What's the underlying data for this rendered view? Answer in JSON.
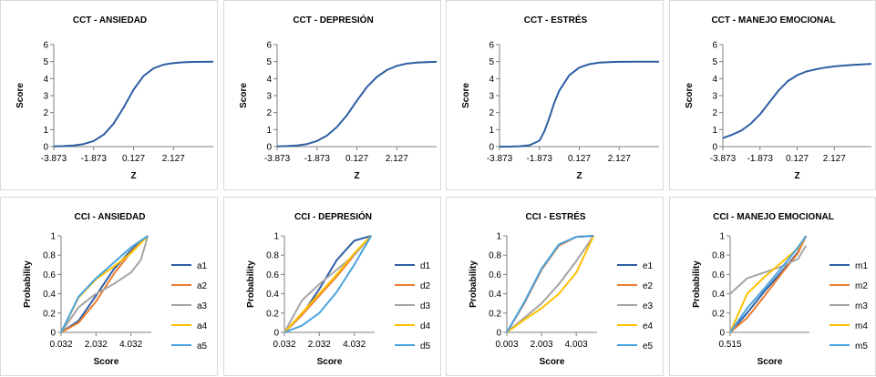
{
  "colors": {
    "series": [
      "#2e5fa3",
      "#ed7d31",
      "#a5a5a5",
      "#ffc000",
      "#4aa3df"
    ],
    "border": "#d9d9d9",
    "axis": "#7f7f7f"
  },
  "chart_data": [
    {
      "type": "line",
      "title": "CCT - ANSIEDAD",
      "xlabel": "Z",
      "ylabel": "Score",
      "xlim": [
        -3.873,
        4.127
      ],
      "ylim": [
        0,
        6
      ],
      "xticks": [
        "-3.873",
        "-1.873",
        "0.127",
        "2.127"
      ],
      "yticks": [
        "0",
        "1",
        "2",
        "3",
        "4",
        "5",
        "6"
      ],
      "series": [
        {
          "values": [
            [
              -3.873,
              0.01
            ],
            [
              -3.373,
              0.03
            ],
            [
              -2.873,
              0.07
            ],
            [
              -2.373,
              0.15
            ],
            [
              -1.873,
              0.33
            ],
            [
              -1.373,
              0.7
            ],
            [
              -0.873,
              1.35
            ],
            [
              -0.373,
              2.3
            ],
            [
              0.127,
              3.35
            ],
            [
              0.627,
              4.15
            ],
            [
              1.127,
              4.6
            ],
            [
              1.627,
              4.82
            ],
            [
              2.127,
              4.91
            ],
            [
              2.627,
              4.96
            ],
            [
              3.127,
              4.98
            ],
            [
              3.627,
              4.99
            ],
            [
              4.127,
              5.0
            ]
          ]
        }
      ]
    },
    {
      "type": "line",
      "title": "CCT - DEPRESIÓN",
      "xlabel": "Z",
      "ylabel": "Score",
      "xlim": [
        -3.873,
        4.127
      ],
      "ylim": [
        0,
        6
      ],
      "xticks": [
        "-3.873",
        "-1.873",
        "0.127",
        "2.127"
      ],
      "yticks": [
        "0",
        "1",
        "2",
        "3",
        "4",
        "5",
        "6"
      ],
      "series": [
        {
          "values": [
            [
              -3.873,
              0.01
            ],
            [
              -3.373,
              0.03
            ],
            [
              -2.873,
              0.07
            ],
            [
              -2.373,
              0.15
            ],
            [
              -1.873,
              0.33
            ],
            [
              -1.373,
              0.65
            ],
            [
              -0.873,
              1.15
            ],
            [
              -0.373,
              1.85
            ],
            [
              0.127,
              2.7
            ],
            [
              0.627,
              3.5
            ],
            [
              1.127,
              4.1
            ],
            [
              1.627,
              4.5
            ],
            [
              2.127,
              4.75
            ],
            [
              2.627,
              4.88
            ],
            [
              3.127,
              4.94
            ],
            [
              3.627,
              4.97
            ],
            [
              4.127,
              4.99
            ]
          ]
        }
      ]
    },
    {
      "type": "line",
      "title": "CCT - ESTRÉS",
      "xlabel": "Z",
      "ylabel": "Score",
      "xlim": [
        -3.873,
        4.127
      ],
      "ylim": [
        0,
        6
      ],
      "xticks": [
        "-3.873",
        "-1.873",
        "0.127",
        "2.127"
      ],
      "yticks": [
        "0",
        "1",
        "2",
        "3",
        "4",
        "5",
        "6"
      ],
      "series": [
        {
          "values": [
            [
              -3.873,
              0.0
            ],
            [
              -3.373,
              0.0
            ],
            [
              -2.873,
              0.02
            ],
            [
              -2.373,
              0.08
            ],
            [
              -1.873,
              0.35
            ],
            [
              -1.623,
              0.9
            ],
            [
              -1.373,
              1.7
            ],
            [
              -1.123,
              2.6
            ],
            [
              -0.873,
              3.3
            ],
            [
              -0.373,
              4.2
            ],
            [
              0.127,
              4.65
            ],
            [
              0.627,
              4.85
            ],
            [
              1.127,
              4.94
            ],
            [
              1.627,
              4.97
            ],
            [
              2.127,
              4.99
            ],
            [
              3.127,
              5.0
            ],
            [
              4.127,
              5.0
            ]
          ]
        }
      ]
    },
    {
      "type": "line",
      "title": "CCT - MANEJO EMOCIONAL",
      "xlabel": "Z",
      "ylabel": "Score",
      "xlim": [
        -3.873,
        4.127
      ],
      "ylim": [
        0,
        6
      ],
      "xticks": [
        "-3.873",
        "-1.873",
        "0.127",
        "2.127"
      ],
      "yticks": [
        "0",
        "1",
        "2",
        "3",
        "4",
        "5",
        "6"
      ],
      "series": [
        {
          "values": [
            [
              -3.873,
              0.5
            ],
            [
              -3.373,
              0.7
            ],
            [
              -2.873,
              0.95
            ],
            [
              -2.373,
              1.35
            ],
            [
              -1.873,
              1.9
            ],
            [
              -1.373,
              2.6
            ],
            [
              -0.873,
              3.3
            ],
            [
              -0.373,
              3.85
            ],
            [
              0.127,
              4.2
            ],
            [
              0.627,
              4.42
            ],
            [
              1.127,
              4.55
            ],
            [
              1.627,
              4.65
            ],
            [
              2.127,
              4.72
            ],
            [
              2.627,
              4.77
            ],
            [
              3.127,
              4.81
            ],
            [
              3.627,
              4.84
            ],
            [
              4.127,
              4.87
            ]
          ]
        }
      ]
    },
    {
      "type": "line",
      "title": "CCI - ANSIEDAD",
      "xlabel": "Score",
      "ylabel": "Probability",
      "xlim": [
        0.032,
        5.2
      ],
      "ylim": [
        0,
        1
      ],
      "xticks": [
        "0.032",
        "2.032",
        "4.032"
      ],
      "yticks": [
        "0",
        "0.2",
        "0.4",
        "0.6",
        "0.8",
        "1"
      ],
      "series": [
        {
          "name": "a1",
          "values": [
            [
              0.032,
              0.0
            ],
            [
              1.032,
              0.12
            ],
            [
              2.032,
              0.38
            ],
            [
              3.032,
              0.65
            ],
            [
              4.032,
              0.85
            ],
            [
              5.0,
              1.0
            ]
          ]
        },
        {
          "name": "a2",
          "values": [
            [
              0.032,
              0.0
            ],
            [
              1.032,
              0.1
            ],
            [
              2.032,
              0.32
            ],
            [
              3.032,
              0.6
            ],
            [
              4.032,
              0.83
            ],
            [
              5.0,
              1.0
            ]
          ]
        },
        {
          "name": "a3",
          "values": [
            [
              0.032,
              0.0
            ],
            [
              1.032,
              0.26
            ],
            [
              2.032,
              0.4
            ],
            [
              3.032,
              0.5
            ],
            [
              4.032,
              0.62
            ],
            [
              4.6,
              0.75
            ],
            [
              5.0,
              1.0
            ]
          ]
        },
        {
          "name": "a4",
          "values": [
            [
              0.032,
              0.0
            ],
            [
              1.032,
              0.36
            ],
            [
              2.032,
              0.55
            ],
            [
              3.032,
              0.68
            ],
            [
              4.032,
              0.82
            ],
            [
              5.0,
              1.0
            ]
          ]
        },
        {
          "name": "a5",
          "values": [
            [
              0.032,
              0.0
            ],
            [
              1.032,
              0.37
            ],
            [
              2.032,
              0.56
            ],
            [
              3.032,
              0.72
            ],
            [
              4.032,
              0.88
            ],
            [
              5.0,
              1.0
            ]
          ]
        }
      ]
    },
    {
      "type": "line",
      "title": "CCI - DEPRESIÓN",
      "xlabel": "Score",
      "ylabel": "Probability",
      "xlim": [
        0.032,
        5.2
      ],
      "ylim": [
        0,
        1
      ],
      "xticks": [
        "0.032",
        "2.032",
        "4.032"
      ],
      "yticks": [
        "0",
        "0.2",
        "0.4",
        "0.6",
        "0.8",
        "1"
      ],
      "series": [
        {
          "name": "d1",
          "values": [
            [
              0.032,
              0.0
            ],
            [
              1.032,
              0.18
            ],
            [
              2.032,
              0.45
            ],
            [
              3.032,
              0.75
            ],
            [
              4.032,
              0.95
            ],
            [
              5.0,
              1.0
            ]
          ]
        },
        {
          "name": "d2",
          "values": [
            [
              0.032,
              0.0
            ],
            [
              1.032,
              0.18
            ],
            [
              2.032,
              0.38
            ],
            [
              3.032,
              0.58
            ],
            [
              4.032,
              0.8
            ],
            [
              5.0,
              1.0
            ]
          ]
        },
        {
          "name": "d3",
          "values": [
            [
              0.032,
              0.0
            ],
            [
              1.032,
              0.33
            ],
            [
              2.032,
              0.5
            ],
            [
              3.032,
              0.65
            ],
            [
              4.032,
              0.8
            ],
            [
              5.0,
              1.0
            ]
          ]
        },
        {
          "name": "d4",
          "values": [
            [
              0.032,
              0.0
            ],
            [
              1.032,
              0.2
            ],
            [
              2.032,
              0.4
            ],
            [
              3.032,
              0.6
            ],
            [
              4.032,
              0.82
            ],
            [
              5.0,
              1.0
            ]
          ]
        },
        {
          "name": "d5",
          "values": [
            [
              0.032,
              0.0
            ],
            [
              1.032,
              0.07
            ],
            [
              2.032,
              0.2
            ],
            [
              3.032,
              0.42
            ],
            [
              4.032,
              0.7
            ],
            [
              5.0,
              1.0
            ]
          ]
        }
      ]
    },
    {
      "type": "line",
      "title": "CCI - ESTRÉS",
      "xlabel": "Score",
      "ylabel": "Probability",
      "xlim": [
        0.003,
        5.2
      ],
      "ylim": [
        0,
        1
      ],
      "xticks": [
        "0.003",
        "2.003",
        "4.003"
      ],
      "yticks": [
        "0",
        "0.2",
        "0.4",
        "0.6",
        "0.8",
        "1"
      ],
      "series": [
        {
          "name": "e1",
          "values": [
            [
              0.003,
              0.0
            ],
            [
              1.003,
              0.3
            ],
            [
              2.003,
              0.65
            ],
            [
              3.003,
              0.9
            ],
            [
              4.003,
              0.99
            ],
            [
              5.0,
              1.0
            ]
          ]
        },
        {
          "name": "e2",
          "values": [
            [
              0.003,
              0.0
            ],
            [
              1.003,
              0.3
            ],
            [
              2.003,
              0.65
            ],
            [
              3.003,
              0.9
            ],
            [
              4.003,
              0.99
            ],
            [
              5.0,
              1.0
            ]
          ]
        },
        {
          "name": "e3",
          "values": [
            [
              0.003,
              0.0
            ],
            [
              1.003,
              0.15
            ],
            [
              2.003,
              0.3
            ],
            [
              3.003,
              0.5
            ],
            [
              4.003,
              0.74
            ],
            [
              5.0,
              1.0
            ]
          ]
        },
        {
          "name": "e4",
          "values": [
            [
              0.003,
              0.0
            ],
            [
              1.003,
              0.13
            ],
            [
              2.003,
              0.25
            ],
            [
              3.003,
              0.4
            ],
            [
              4.003,
              0.62
            ],
            [
              5.0,
              1.0
            ]
          ]
        },
        {
          "name": "e5",
          "values": [
            [
              0.003,
              0.0
            ],
            [
              1.003,
              0.31
            ],
            [
              2.003,
              0.66
            ],
            [
              3.003,
              0.91
            ],
            [
              4.003,
              0.99
            ],
            [
              5.0,
              1.0
            ]
          ]
        }
      ]
    },
    {
      "type": "line",
      "title": "CCI - MANEJO EMOCIONAL",
      "xlabel": "Score",
      "ylabel": "Probability",
      "xlim": [
        0.515,
        5.2
      ],
      "ylim": [
        0,
        1
      ],
      "xticks": [
        "0.515"
      ],
      "yticks": [
        "0",
        "0.2",
        "0.4",
        "0.6",
        "0.8",
        "1"
      ],
      "series": [
        {
          "name": "m1",
          "values": [
            [
              0.515,
              0.0
            ],
            [
              1.515,
              0.2
            ],
            [
              2.515,
              0.42
            ],
            [
              3.515,
              0.62
            ],
            [
              4.515,
              0.83
            ],
            [
              5.0,
              1.0
            ]
          ]
        },
        {
          "name": "m2",
          "values": [
            [
              0.515,
              0.0
            ],
            [
              1.515,
              0.15
            ],
            [
              2.515,
              0.37
            ],
            [
              3.515,
              0.6
            ],
            [
              4.515,
              0.82
            ],
            [
              5.0,
              1.0
            ]
          ]
        },
        {
          "name": "m3",
          "values": [
            [
              0.515,
              0.4
            ],
            [
              1.515,
              0.56
            ],
            [
              2.515,
              0.62
            ],
            [
              3.515,
              0.68
            ],
            [
              4.515,
              0.76
            ],
            [
              5.0,
              0.9
            ]
          ]
        },
        {
          "name": "m4",
          "values": [
            [
              0.515,
              0.0
            ],
            [
              1.515,
              0.4
            ],
            [
              2.515,
              0.57
            ],
            [
              3.515,
              0.72
            ],
            [
              4.515,
              0.87
            ],
            [
              5.0,
              1.0
            ]
          ]
        },
        {
          "name": "m5",
          "values": [
            [
              0.515,
              0.0
            ],
            [
              1.515,
              0.25
            ],
            [
              2.515,
              0.45
            ],
            [
              3.515,
              0.66
            ],
            [
              4.515,
              0.88
            ],
            [
              5.0,
              1.0
            ]
          ]
        }
      ]
    }
  ]
}
